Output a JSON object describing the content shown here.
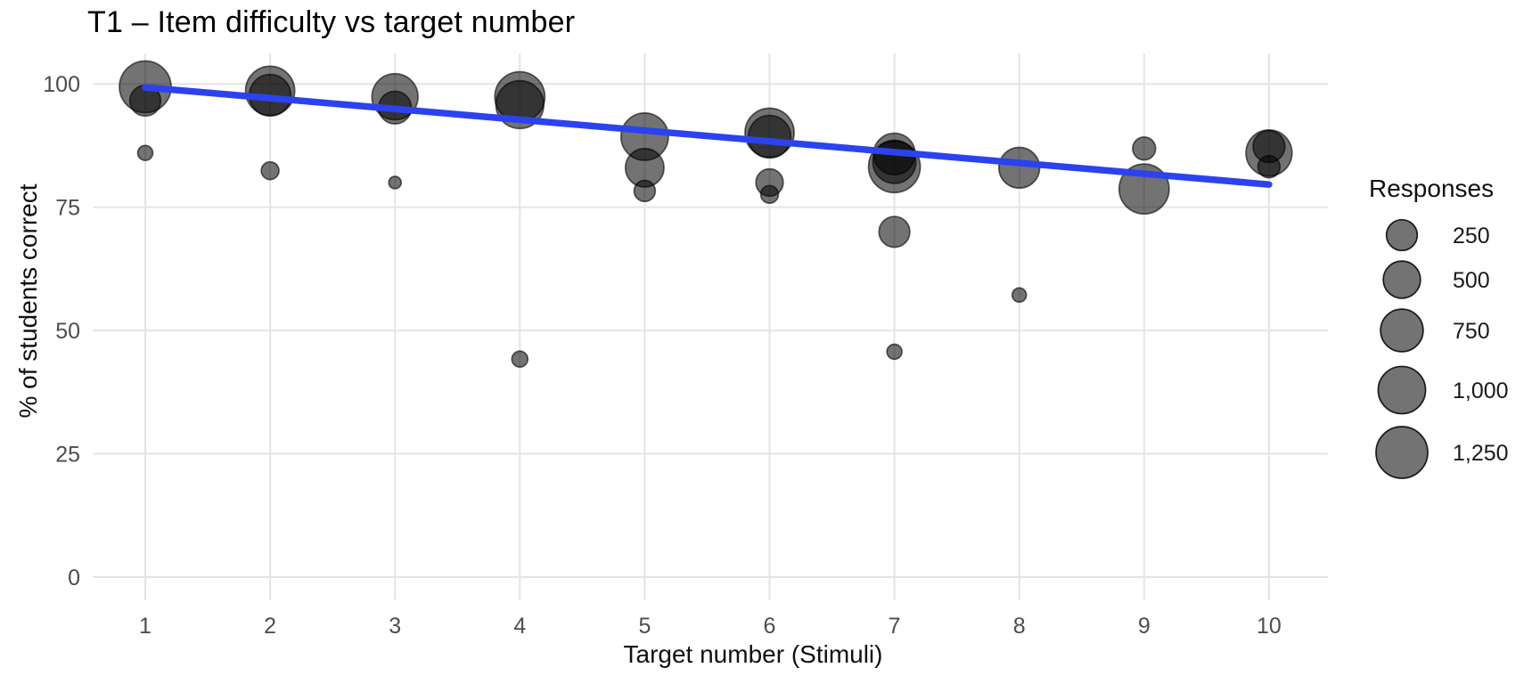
{
  "title": "T1 – Item difficulty vs target number",
  "colors": {
    "background": "#ffffff",
    "grid": "#e4e4e4",
    "tick_text": "#4d4d4d",
    "axis_title_text": "#111111",
    "bubble_fill": "#000000",
    "bubble_opacity": 0.55,
    "bubble_stroke": "#000000",
    "trend": "#2b43ee",
    "legend_text": "#1a1a1a"
  },
  "chart_data": {
    "type": "scatter",
    "title": "T1 – Item difficulty vs target number",
    "xlabel": "Target number (Stimuli)",
    "ylabel": "% of students correct",
    "xlim": [
      0.55,
      10.45
    ],
    "ylim": [
      -4,
      104
    ],
    "grid": true,
    "x_ticks": [
      {
        "value": 1,
        "label": "1"
      },
      {
        "value": 2,
        "label": "2"
      },
      {
        "value": 3,
        "label": "3"
      },
      {
        "value": 4,
        "label": "4"
      },
      {
        "value": 5,
        "label": "5"
      },
      {
        "value": 6,
        "label": "6"
      },
      {
        "value": 7,
        "label": "7"
      },
      {
        "value": 8,
        "label": "8"
      },
      {
        "value": 9,
        "label": "9"
      },
      {
        "value": 10,
        "label": "10"
      }
    ],
    "y_ticks": [
      {
        "value": 0,
        "label": "0"
      },
      {
        "value": 25,
        "label": "25"
      },
      {
        "value": 50,
        "label": "50"
      },
      {
        "value": 75,
        "label": "75"
      },
      {
        "value": 100,
        "label": "100"
      }
    ],
    "legend": {
      "title": "Responses",
      "position": "right",
      "entries": [
        {
          "size": 250,
          "label": "250"
        },
        {
          "size": 500,
          "label": "500"
        },
        {
          "size": 750,
          "label": "750"
        },
        {
          "size": 1000,
          "label": "1,000"
        },
        {
          "size": 1250,
          "label": "1,250"
        }
      ]
    },
    "series": [
      {
        "name": "items",
        "points": [
          {
            "x": 1,
            "pct": 99.4,
            "responses": 1250
          },
          {
            "x": 1,
            "pct": 96.6,
            "responses": 250
          },
          {
            "x": 1,
            "pct": 86.0,
            "responses": 70
          },
          {
            "x": 2,
            "pct": 98.6,
            "responses": 1100
          },
          {
            "x": 2,
            "pct": 97.7,
            "responses": 700
          },
          {
            "x": 2,
            "pct": 82.4,
            "responses": 100
          },
          {
            "x": 3,
            "pct": 97.4,
            "responses": 930
          },
          {
            "x": 3,
            "pct": 95.2,
            "responses": 320
          },
          {
            "x": 3,
            "pct": 80.0,
            "responses": 40
          },
          {
            "x": 4,
            "pct": 97.4,
            "responses": 1150
          },
          {
            "x": 4,
            "pct": 95.8,
            "responses": 1030
          },
          {
            "x": 4,
            "pct": 44.2,
            "responses": 80
          },
          {
            "x": 5,
            "pct": 89.3,
            "responses": 1000
          },
          {
            "x": 5,
            "pct": 83.0,
            "responses": 560
          },
          {
            "x": 5,
            "pct": 78.3,
            "responses": 140
          },
          {
            "x": 6,
            "pct": 90.1,
            "responses": 1100
          },
          {
            "x": 6,
            "pct": 89.3,
            "responses": 750
          },
          {
            "x": 6,
            "pct": 80.0,
            "responses": 210
          },
          {
            "x": 6,
            "pct": 77.6,
            "responses": 100
          },
          {
            "x": 7,
            "pct": 85.8,
            "responses": 700
          },
          {
            "x": 7,
            "pct": 84.2,
            "responses": 780
          },
          {
            "x": 7,
            "pct": 83.2,
            "responses": 1250
          },
          {
            "x": 7,
            "pct": 70.0,
            "responses": 250
          },
          {
            "x": 7,
            "pct": 45.7,
            "responses": 70
          },
          {
            "x": 8,
            "pct": 83.0,
            "responses": 660
          },
          {
            "x": 8,
            "pct": 57.2,
            "responses": 60
          },
          {
            "x": 9,
            "pct": 86.9,
            "responses": 160
          },
          {
            "x": 9,
            "pct": 78.7,
            "responses": 1150
          },
          {
            "x": 10,
            "pct": 86.0,
            "responses": 930
          },
          {
            "x": 10,
            "pct": 87.3,
            "responses": 290
          },
          {
            "x": 10,
            "pct": 83.2,
            "responses": 150
          }
        ]
      }
    ],
    "trend": {
      "type": "linear",
      "x_start": 1,
      "y_start": 99.3,
      "x_end": 10,
      "y_end": 79.6
    }
  }
}
